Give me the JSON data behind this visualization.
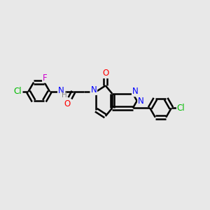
{
  "bg_color": "#e8e8e8",
  "bond_color": "#000000",
  "line_width": 1.8,
  "figsize": [
    3.0,
    3.0
  ],
  "dpi": 100,
  "atom_colors": {
    "N": "#0000ff",
    "O": "#ff0000",
    "Cl_left": "#00bb00",
    "Cl_right": "#00bb00",
    "F": "#cc00cc",
    "H": "#888888"
  }
}
